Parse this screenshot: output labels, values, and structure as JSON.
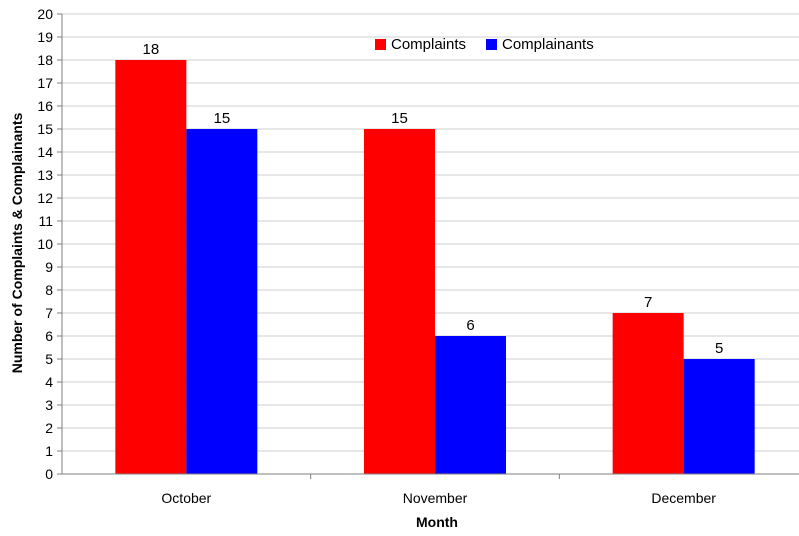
{
  "chart_data": {
    "type": "bar",
    "categories": [
      "October",
      "November",
      "December"
    ],
    "series": [
      {
        "name": "Complaints",
        "values": [
          18,
          15,
          7
        ],
        "color": "#ff0000"
      },
      {
        "name": "Complainants",
        "values": [
          15,
          6,
          5
        ],
        "color": "#0000ff"
      }
    ],
    "title": "",
    "xlabel": "Month",
    "ylabel": "Number of Complaints & Complainants",
    "ylim": [
      0,
      20
    ],
    "ytick_step": 1,
    "grid": true,
    "legend_position": "top-right"
  }
}
